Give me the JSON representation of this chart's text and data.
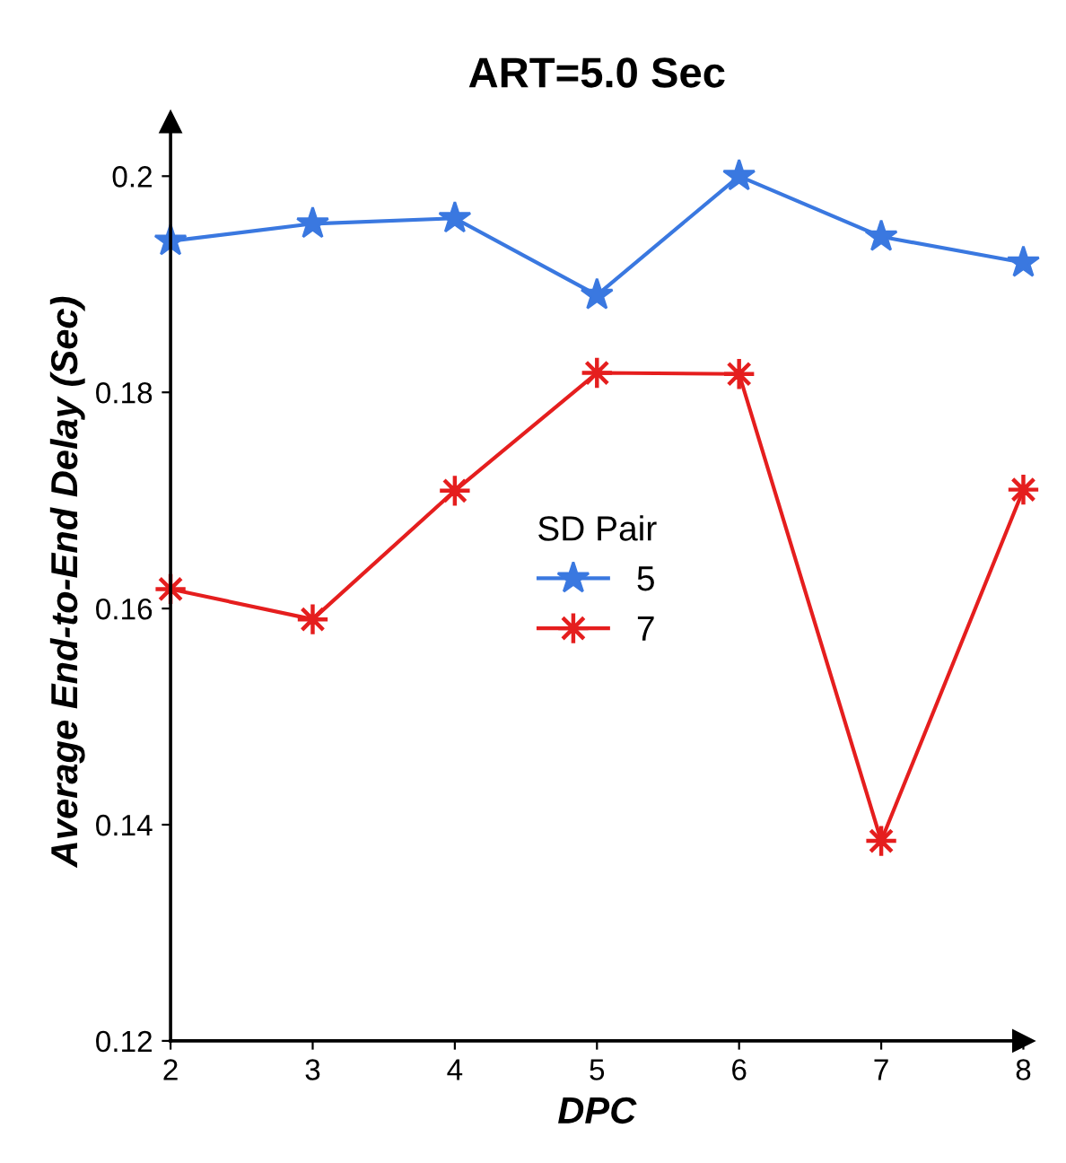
{
  "chart_data": {
    "type": "line",
    "title": "ART=5.0 Sec",
    "xlabel": "DPC",
    "ylabel": "Average End-to-End Delay (Sec)",
    "legend_title": "SD Pair",
    "x": [
      2,
      3,
      4,
      5,
      6,
      7,
      8
    ],
    "series": [
      {
        "name": "5",
        "color": "#3a78e0",
        "marker": "star",
        "values": [
          0.194,
          0.1956,
          0.1961,
          0.189,
          0.2,
          0.1944,
          0.192
        ]
      },
      {
        "name": "7",
        "color": "#e51e1e",
        "marker": "cross",
        "values": [
          0.1618,
          0.159,
          0.1709,
          0.1818,
          0.1817,
          0.1385,
          0.171
        ]
      }
    ],
    "xlim": [
      2,
      8
    ],
    "xticks": [
      2,
      3,
      4,
      5,
      6,
      7,
      8
    ],
    "ylim": [
      0.12,
      0.205
    ],
    "yticks": [
      0.12,
      0.14,
      0.16,
      0.18,
      0.2
    ],
    "grid": false,
    "legend": "center",
    "line_style": "solid"
  }
}
